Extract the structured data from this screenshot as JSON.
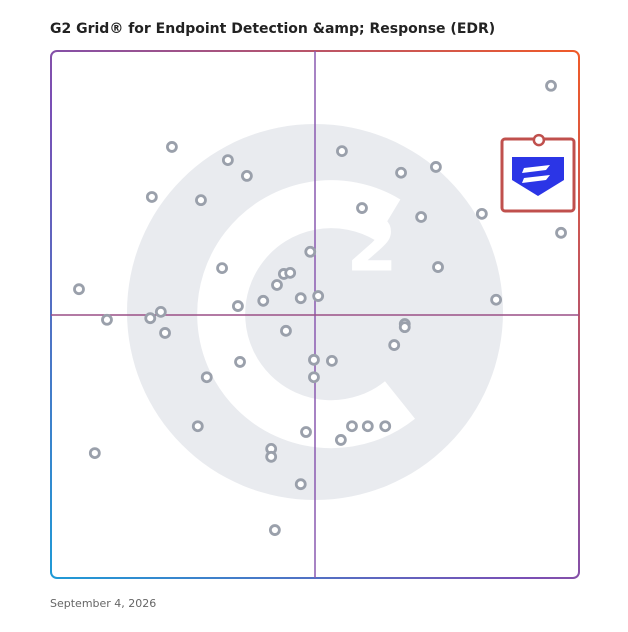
{
  "chart_data": {
    "type": "scatter",
    "title": "G2 Grid® for Endpoint Detection &amp; Response (EDR)",
    "date": "September 4, 2026",
    "xlim": [
      0,
      100
    ],
    "ylim": [
      0,
      100
    ],
    "series": [
      {
        "color": "#9aa0ab",
        "x": [
          94.7,
          22.9,
          33.5,
          37.1,
          55.1,
          66.3,
          72.9,
          19.1,
          28.4,
          58.9,
          70.1,
          81.6,
          96.6,
          49.1,
          32.4,
          73.3,
          44.1,
          45.3,
          42.8,
          5.3,
          47.3,
          50.6,
          40.2,
          35.4,
          84.3,
          20.8,
          18.8,
          10.6,
          21.6,
          44.5,
          67.0,
          67.0,
          65.0,
          35.8,
          49.8,
          53.2,
          49.8,
          29.5,
          27.8,
          48.3,
          57.0,
          60.0,
          63.3,
          54.9,
          41.7,
          41.7,
          8.3,
          47.3,
          42.4
        ],
        "y": [
          93.4,
          81.8,
          79.3,
          76.3,
          81.0,
          76.9,
          78.0,
          72.3,
          71.7,
          70.2,
          68.5,
          69.1,
          65.5,
          61.9,
          58.8,
          59.0,
          57.7,
          57.9,
          55.6,
          54.8,
          53.1,
          53.5,
          52.6,
          51.6,
          52.8,
          50.5,
          49.3,
          49.0,
          46.5,
          46.9,
          48.2,
          47.6,
          44.2,
          41.0,
          41.4,
          41.2,
          38.1,
          38.1,
          28.8,
          27.7,
          28.8,
          28.8,
          28.8,
          26.2,
          24.5,
          23.0,
          23.7,
          17.8,
          9.1
        ]
      },
      {
        "color": "#c0504d",
        "x": [
          92.4
        ],
        "y": [
          83.1
        ]
      }
    ]
  }
}
